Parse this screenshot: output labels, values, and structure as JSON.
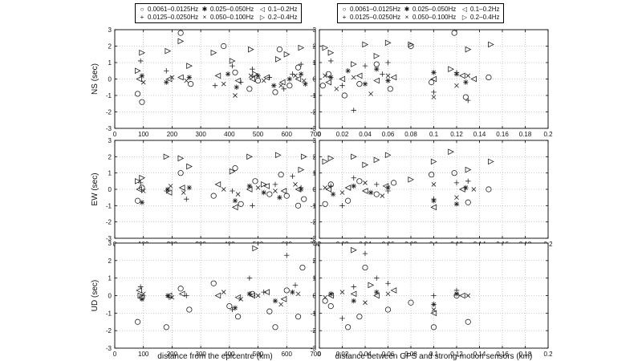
{
  "legends": [
    {
      "rows": [
        [
          {
            "symbol": "○",
            "label": "0.0061–0.0125Hz"
          },
          {
            "symbol": "✱",
            "label": "0.025–0.050Hz"
          },
          {
            "symbol": "◁",
            "label": "0.1–0.2Hz"
          }
        ],
        [
          {
            "symbol": "+",
            "label": "0.0125–0.0250Hz"
          },
          {
            "symbol": "×",
            "label": "0.050–0.100Hz"
          },
          {
            "symbol": "▷",
            "label": "0.2–0.4Hz"
          }
        ]
      ]
    },
    {
      "rows": [
        [
          {
            "symbol": "○",
            "label": "0.0061–0.0125Hz"
          },
          {
            "symbol": "✱",
            "label": "0.025–0.050Hz"
          },
          {
            "symbol": "◁",
            "label": "0.1–0.2Hz"
          }
        ],
        [
          {
            "symbol": "+",
            "label": "0.0125–0.0250Hz"
          },
          {
            "symbol": "×",
            "label": "0.050–0.100Hz"
          },
          {
            "symbol": "▷",
            "label": "0.2–0.4Hz"
          }
        ]
      ]
    }
  ],
  "chart_data": [
    {
      "type": "scatter",
      "ylabel": "NS (sec)",
      "xlim": [
        0,
        700
      ],
      "ylim": [
        -3,
        3
      ],
      "grid": true,
      "xticks": [
        "0",
        "100",
        "200",
        "300",
        "400",
        "500",
        "600",
        "700"
      ],
      "yticks": [
        "-3",
        "-2",
        "-1",
        "0",
        "1",
        "2",
        "3"
      ],
      "series": [
        {
          "marker": "circle",
          "x": [
            80,
            95,
            230,
            265,
            380,
            420,
            470,
            500,
            560,
            575,
            610,
            640
          ],
          "y": [
            -0.9,
            -1.4,
            2.8,
            -0.3,
            2.0,
            0.4,
            -0.6,
            -0.1,
            -0.8,
            1.8,
            -0.4,
            0.7
          ]
        },
        {
          "marker": "plus",
          "x": [
            90,
            180,
            350,
            410,
            440,
            480,
            540,
            590,
            620,
            650
          ],
          "y": [
            1.1,
            0.5,
            -0.4,
            0.8,
            -0.2,
            0.6,
            0.1,
            -0.6,
            0.3,
            0.9
          ]
        },
        {
          "marker": "star",
          "x": [
            95,
            180,
            260,
            395,
            425,
            500,
            555,
            610,
            650,
            665
          ],
          "y": [
            0.2,
            -0.2,
            0.1,
            0.3,
            -0.5,
            0.2,
            -0.4,
            0.0,
            0.3,
            -0.3
          ]
        },
        {
          "marker": "x",
          "x": [
            100,
            200,
            250,
            380,
            420,
            475,
            520,
            580,
            630,
            660
          ],
          "y": [
            -0.2,
            0.1,
            -0.1,
            -0.3,
            -1.0,
            0.2,
            -0.1,
            -0.4,
            0.2,
            -0.1
          ]
        },
        {
          "marker": "tri-left",
          "x": [
            85,
            190,
            230,
            360,
            430,
            480,
            530,
            585,
            640
          ],
          "y": [
            0.0,
            0.0,
            0.1,
            0.2,
            -0.1,
            0.0,
            0.1,
            -0.2,
            0.0
          ]
        },
        {
          "marker": "tri-right",
          "x": [
            80,
            95,
            185,
            230,
            260,
            345,
            410,
            475,
            490,
            570,
            600,
            650
          ],
          "y": [
            0.5,
            1.6,
            1.7,
            2.3,
            0.8,
            1.6,
            1.1,
            1.8,
            0.3,
            1.2,
            1.5,
            1.9
          ]
        }
      ]
    },
    {
      "type": "scatter",
      "ylabel": "",
      "xlim": [
        0,
        0.2
      ],
      "ylim": [
        -3,
        3
      ],
      "grid": true,
      "xticks": [
        "0",
        "0.02",
        "0.04",
        "0.06",
        "0.08",
        "0.1",
        "0.12",
        "0.14",
        "0.16",
        "0.18",
        "0.2"
      ],
      "yticks": [
        "-3",
        "-2",
        "-1",
        "0",
        "1",
        "2",
        "3"
      ],
      "series": [
        {
          "marker": "circle",
          "x": [
            0.003,
            0.008,
            0.022,
            0.035,
            0.05,
            0.062,
            0.08,
            0.098,
            0.118,
            0.128,
            0.148
          ],
          "y": [
            -0.4,
            0.3,
            -1.0,
            -0.3,
            0.9,
            -0.6,
            2.0,
            -0.2,
            2.8,
            -1.1,
            0.1
          ]
        },
        {
          "marker": "plus",
          "x": [
            0.01,
            0.02,
            0.03,
            0.04,
            0.055,
            0.06,
            0.1,
            0.12,
            0.13
          ],
          "y": [
            1.1,
            -0.4,
            -1.9,
            0.8,
            0.3,
            1.0,
            -0.8,
            0.4,
            -1.3
          ]
        },
        {
          "marker": "star",
          "x": [
            0.01,
            0.025,
            0.04,
            0.05,
            0.06,
            0.1,
            0.12,
            0.128
          ],
          "y": [
            0.1,
            0.5,
            -0.3,
            0.6,
            -0.1,
            0.4,
            0.3,
            -0.2
          ]
        },
        {
          "marker": "x",
          "x": [
            0.005,
            0.015,
            0.03,
            0.045,
            0.06,
            0.1,
            0.12,
            0.13
          ],
          "y": [
            0.2,
            -0.6,
            0.1,
            -0.9,
            0.2,
            -1.1,
            -0.4,
            0.2
          ]
        },
        {
          "marker": "tri-left",
          "x": [
            0.008,
            0.02,
            0.035,
            0.05,
            0.065,
            0.1,
            0.125,
            0.135
          ],
          "y": [
            -0.2,
            0.0,
            0.2,
            -0.1,
            0.1,
            0.0,
            0.2,
            0.0
          ]
        },
        {
          "marker": "tri-right",
          "x": [
            0.005,
            0.01,
            0.03,
            0.04,
            0.05,
            0.06,
            0.08,
            0.115,
            0.13,
            0.15
          ],
          "y": [
            1.9,
            1.6,
            0.9,
            2.1,
            1.4,
            2.2,
            2.1,
            0.6,
            1.8,
            2.1
          ]
        }
      ]
    },
    {
      "type": "scatter",
      "ylabel": "EW (sec)",
      "xlim": [
        0,
        700
      ],
      "ylim": [
        -3,
        3
      ],
      "grid": true,
      "xticks": [
        "0",
        "100",
        "200",
        "300",
        "400",
        "500",
        "600",
        "700"
      ],
      "yticks": [
        "-3",
        "-2",
        "-1",
        "0",
        "1",
        "2",
        "3"
      ],
      "series": [
        {
          "marker": "circle",
          "x": [
            80,
            95,
            230,
            345,
            420,
            440,
            490,
            540,
            580,
            600,
            640,
            660
          ],
          "y": [
            -0.7,
            0.1,
            1.0,
            -0.4,
            1.3,
            -0.9,
            0.5,
            -0.3,
            0.9,
            -0.4,
            -1.0,
            -0.6
          ]
        },
        {
          "marker": "plus",
          "x": [
            90,
            180,
            250,
            410,
            480,
            560,
            620,
            650
          ],
          "y": [
            0.4,
            -0.1,
            -0.6,
            -0.1,
            -1.0,
            0.3,
            0.8,
            0.1
          ]
        },
        {
          "marker": "star",
          "x": [
            95,
            185,
            260,
            420,
            470,
            520,
            575,
            650
          ],
          "y": [
            -0.8,
            0.0,
            0.1,
            -0.7,
            0.2,
            -0.2,
            -0.5,
            0.0
          ]
        },
        {
          "marker": "x",
          "x": [
            100,
            195,
            240,
            380,
            430,
            500,
            560,
            630
          ],
          "y": [
            -0.1,
            0.2,
            -0.2,
            0.0,
            -0.3,
            0.1,
            -0.1,
            0.3
          ]
        },
        {
          "marker": "tri-left",
          "x": [
            85,
            190,
            235,
            360,
            420,
            470,
            530,
            590,
            640
          ],
          "y": [
            0.0,
            -0.2,
            0.1,
            0.3,
            -1.1,
            0.0,
            0.2,
            -0.1,
            0.0
          ]
        },
        {
          "marker": "tri-right",
          "x": [
            80,
            95,
            180,
            230,
            260,
            410,
            470,
            520,
            570,
            650,
            660
          ],
          "y": [
            0.5,
            0.7,
            2.0,
            1.9,
            1.4,
            1.1,
            2.0,
            0.3,
            2.1,
            1.2,
            2.0
          ]
        }
      ]
    },
    {
      "type": "scatter",
      "ylabel": "",
      "xlim": [
        0,
        0.2
      ],
      "ylim": [
        -3,
        3
      ],
      "grid": true,
      "xticks": [
        "0",
        "0.02",
        "0.04",
        "0.06",
        "0.08",
        "0.1",
        "0.12",
        "0.14",
        "0.16",
        "0.18",
        "0.2"
      ],
      "yticks": [
        "-3",
        "-2",
        "-1",
        "0",
        "1",
        "2",
        "3"
      ],
      "series": [
        {
          "marker": "circle",
          "x": [
            0.005,
            0.01,
            0.025,
            0.035,
            0.05,
            0.065,
            0.098,
            0.118,
            0.13,
            0.148
          ],
          "y": [
            -0.9,
            0.3,
            -0.7,
            0.5,
            -0.3,
            0.4,
            0.9,
            1.0,
            -0.8,
            0.0
          ]
        },
        {
          "marker": "plus",
          "x": [
            0.01,
            0.02,
            0.03,
            0.05,
            0.06,
            0.1,
            0.12,
            0.13
          ],
          "y": [
            0.2,
            -1.0,
            0.7,
            0.3,
            -0.1,
            -0.6,
            0.4,
            0.5
          ]
        },
        {
          "marker": "star",
          "x": [
            0.012,
            0.03,
            0.045,
            0.06,
            0.1,
            0.12,
            0.128
          ],
          "y": [
            -0.3,
            0.2,
            -0.2,
            0.1,
            -0.7,
            -0.9,
            0.1
          ]
        },
        {
          "marker": "x",
          "x": [
            0.005,
            0.02,
            0.04,
            0.055,
            0.1,
            0.12,
            0.135
          ],
          "y": [
            0.1,
            -0.2,
            0.4,
            -0.4,
            0.3,
            -0.5,
            0.0
          ]
        },
        {
          "marker": "tri-left",
          "x": [
            0.008,
            0.025,
            0.04,
            0.058,
            0.1,
            0.125
          ],
          "y": [
            0.0,
            0.1,
            -0.1,
            0.2,
            -1.1,
            0.0
          ]
        },
        {
          "marker": "tri-right",
          "x": [
            0.005,
            0.01,
            0.03,
            0.04,
            0.05,
            0.06,
            0.08,
            0.1,
            0.115,
            0.13,
            0.15
          ],
          "y": [
            1.7,
            1.9,
            2.0,
            1.5,
            1.8,
            2.1,
            0.6,
            1.7,
            2.3,
            1.2,
            1.7
          ]
        }
      ]
    },
    {
      "type": "scatter",
      "ylabel": "UD (sec)",
      "xlim": [
        0,
        700
      ],
      "ylim": [
        -3,
        3
      ],
      "grid": true,
      "xticks": [
        "0",
        "100",
        "200",
        "300",
        "400",
        "500",
        "600",
        "700"
      ],
      "yticks": [
        "-3",
        "-2",
        "-1",
        "0",
        "1",
        "2",
        "3"
      ],
      "series": [
        {
          "marker": "circle",
          "x": [
            80,
            95,
            180,
            230,
            260,
            345,
            400,
            430,
            480,
            540,
            560,
            600,
            640,
            655
          ],
          "y": [
            -1.5,
            -0.1,
            -1.8,
            0.4,
            -0.8,
            0.7,
            -0.6,
            -1.2,
            0.1,
            -0.9,
            -1.8,
            0.3,
            -1.2,
            1.6
          ]
        },
        {
          "marker": "plus",
          "x": [
            90,
            190,
            250,
            410,
            470,
            520,
            600,
            630
          ],
          "y": [
            0.5,
            -0.1,
            0.0,
            -0.8,
            1.0,
            0.2,
            2.3,
            0.6
          ]
        },
        {
          "marker": "star",
          "x": [
            95,
            185,
            420,
            470,
            560,
            620
          ],
          "y": [
            -0.2,
            0.0,
            -0.7,
            0.1,
            -0.3,
            0.2
          ]
        },
        {
          "marker": "x",
          "x": [
            100,
            200,
            380,
            440,
            500,
            580,
            640
          ],
          "y": [
            0.1,
            -0.1,
            0.2,
            -0.2,
            0.0,
            -0.5,
            0.1
          ]
        },
        {
          "marker": "tri-left",
          "x": [
            85,
            190,
            235,
            360,
            430,
            480,
            530,
            590
          ],
          "y": [
            0.3,
            0.0,
            0.1,
            0.0,
            -0.1,
            0.0,
            0.2,
            -0.2
          ]
        },
        {
          "marker": "tri-right",
          "x": [
            90,
            490
          ],
          "y": [
            0.0,
            2.7
          ]
        }
      ]
    },
    {
      "type": "scatter",
      "ylabel": "",
      "xlim": [
        0,
        0.2
      ],
      "ylim": [
        -3,
        3
      ],
      "grid": true,
      "xticks": [
        "0",
        "0.02",
        "0.04",
        "0.06",
        "0.08",
        "0.1",
        "0.12",
        "0.14",
        "0.16",
        "0.18",
        "0.2"
      ],
      "yticks": [
        "-3",
        "-2",
        "-1",
        "0",
        "1",
        "2",
        "3"
      ],
      "series": [
        {
          "marker": "circle",
          "x": [
            0.005,
            0.01,
            0.025,
            0.035,
            0.04,
            0.06,
            0.08,
            0.1,
            0.12,
            0.13
          ],
          "y": [
            -0.3,
            -0.6,
            -1.8,
            -1.2,
            1.6,
            -0.8,
            -0.4,
            -1.8,
            0.0,
            -1.5
          ]
        },
        {
          "marker": "plus",
          "x": [
            0.02,
            0.03,
            0.04,
            0.05,
            0.06,
            0.1,
            0.12
          ],
          "y": [
            -1.3,
            0.5,
            2.4,
            1.0,
            0.7,
            0.0,
            0.3
          ]
        },
        {
          "marker": "star",
          "x": [
            0.01,
            0.03,
            0.05,
            0.1,
            0.12
          ],
          "y": [
            0.1,
            -0.3,
            0.2,
            -0.5,
            0.1
          ]
        },
        {
          "marker": "x",
          "x": [
            0.005,
            0.02,
            0.04,
            0.06,
            0.1,
            0.13
          ],
          "y": [
            -0.1,
            0.2,
            -0.4,
            0.1,
            -0.8,
            0.0
          ]
        },
        {
          "marker": "tri-left",
          "x": [
            0.01,
            0.03,
            0.05,
            0.065,
            0.1,
            0.125
          ],
          "y": [
            0.0,
            0.1,
            0.0,
            0.3,
            -1.0,
            0.0
          ]
        },
        {
          "marker": "tri-right",
          "x": [
            0.03,
            0.045
          ],
          "y": [
            2.6,
            0.6
          ]
        }
      ]
    }
  ],
  "xlabels": [
    "distance from the epicentre (km)",
    "distance between GPS and strong-motion sensors (km)"
  ]
}
